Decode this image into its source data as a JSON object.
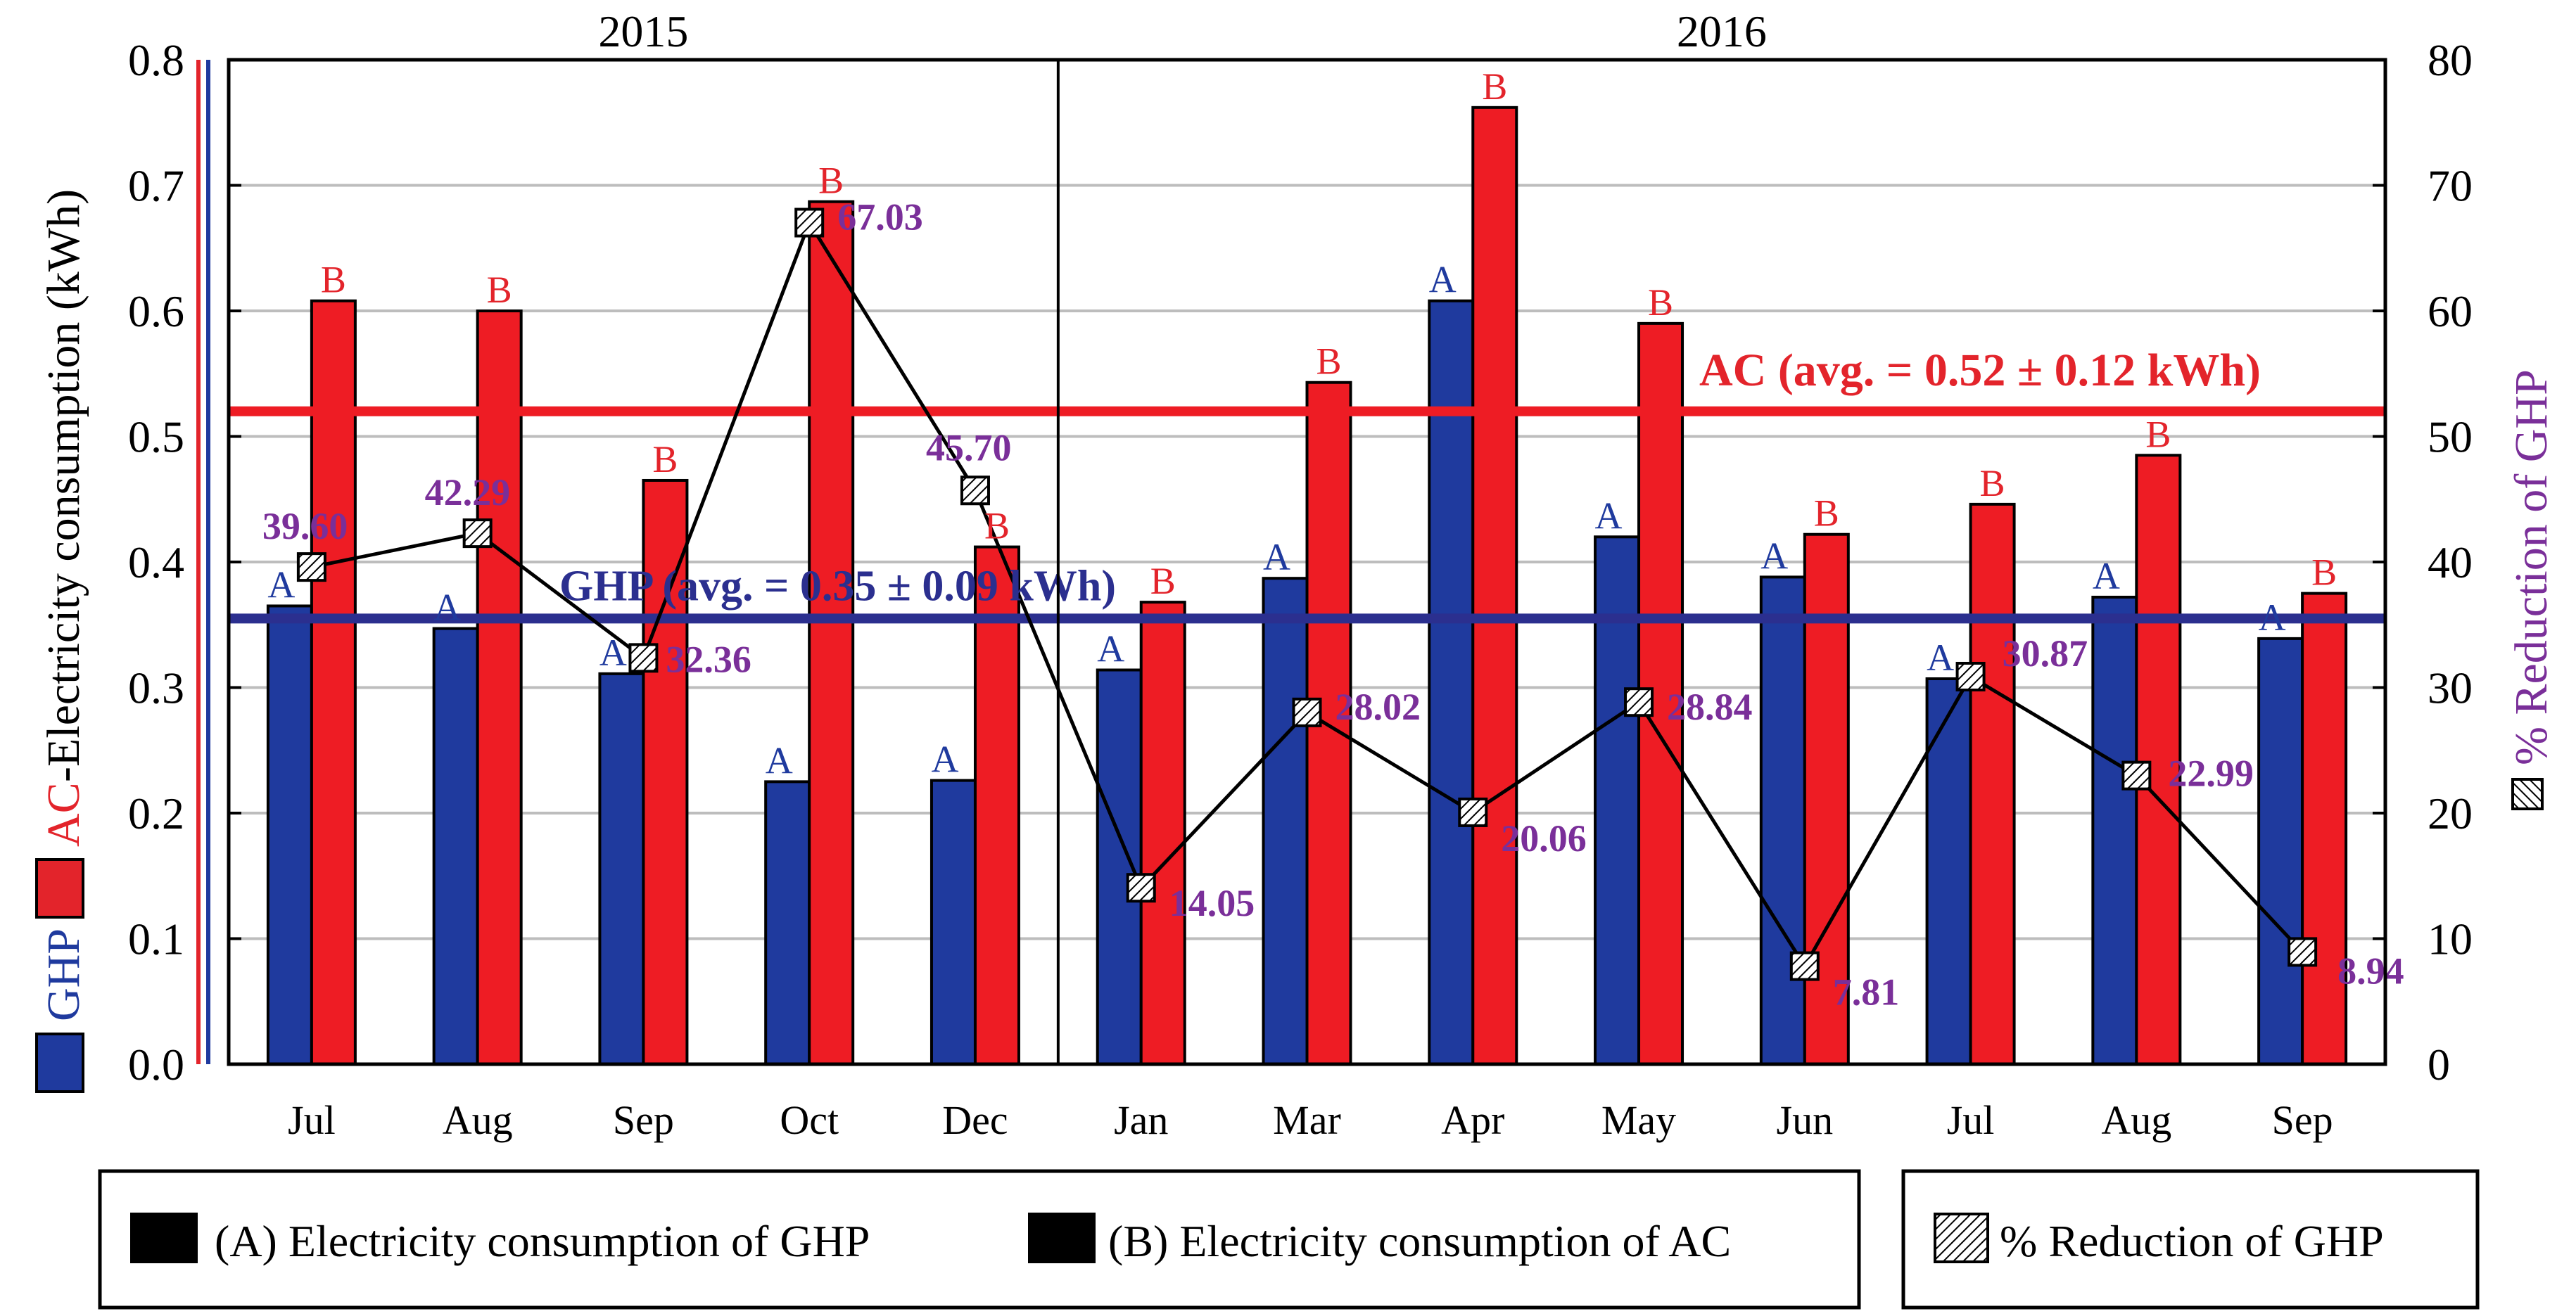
{
  "chart_data": {
    "type": "bar",
    "years": [
      {
        "label": "2015",
        "months": 5
      },
      {
        "label": "2016",
        "months": 8
      }
    ],
    "categories": [
      "Jul",
      "Aug",
      "Sep",
      "Oct",
      "Dec",
      "Jan",
      "Mar",
      "Apr",
      "May",
      "Jun",
      "Jul",
      "Aug",
      "Sep"
    ],
    "series": [
      {
        "name": "(A) Electricity consumption of GHP",
        "letter": "A",
        "color": "#1f3a9e",
        "letter_color": "#1f3a9e",
        "axis": "left",
        "values": [
          0.365,
          0.347,
          0.311,
          0.225,
          0.226,
          0.314,
          0.387,
          0.608,
          0.42,
          0.388,
          0.307,
          0.372,
          0.339
        ]
      },
      {
        "name": "(B) Electricity consumption of AC",
        "letter": "B",
        "color": "#ee1c24",
        "letter_color": "#e3242b",
        "axis": "left",
        "values": [
          0.608,
          0.6,
          0.465,
          0.687,
          0.412,
          0.368,
          0.543,
          0.762,
          0.59,
          0.422,
          0.446,
          0.485,
          0.375
        ]
      },
      {
        "name": "% Reduction of GHP",
        "type": "line",
        "axis": "right",
        "color": "#000000",
        "label_color": "#7a2f99",
        "values": [
          39.6,
          42.29,
          32.36,
          67.03,
          45.7,
          14.05,
          28.02,
          20.06,
          28.84,
          7.81,
          30.87,
          22.99,
          8.94
        ],
        "labels": [
          "39.60",
          "42.29",
          "32.36",
          "67.03",
          "45.70",
          "14.05",
          "28.02",
          "20.06",
          "28.84",
          "7.81",
          "30.87",
          "22.99",
          "8.94"
        ]
      }
    ],
    "left_axis": {
      "ylim": [
        0,
        0.8
      ],
      "ticks": [
        "0.0",
        "0.1",
        "0.2",
        "0.3",
        "0.4",
        "0.5",
        "0.6",
        "0.7",
        "0.8"
      ]
    },
    "right_axis": {
      "ylim": [
        0,
        80
      ],
      "ticks": [
        "0",
        "10",
        "20",
        "30",
        "40",
        "50",
        "60",
        "70",
        "80"
      ],
      "label": "% Reduction of GHP",
      "label_color": "#7a2f99"
    },
    "ylabel_left": {
      "part1": "GHP",
      "part1_color": "#1f3a9e",
      "part2": "AC",
      "part2_color": "#e3242b",
      "part3": " -Electricity consumption (kWh)"
    },
    "averages": [
      {
        "series": "AC",
        "value": 0.52,
        "label": "AC (avg. = 0.52 ± 0.12 kWh)",
        "color": "#ee1c24"
      },
      {
        "series": "GHP",
        "value": 0.355,
        "label": "GHP (avg. = 0.35 ± 0.09 kWh)",
        "color": "#2b2f8f"
      }
    ],
    "grid": true,
    "legend": {
      "position": "bottom"
    }
  }
}
